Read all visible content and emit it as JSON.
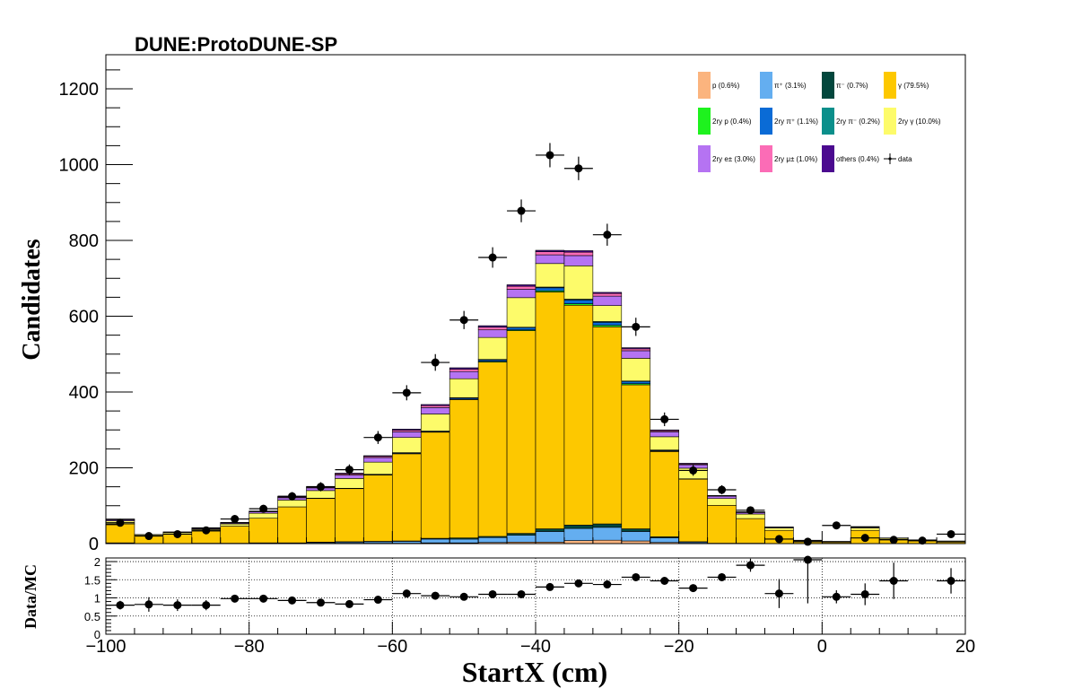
{
  "colors": {
    "p": "#fbb47e",
    "pi_plus": "#64aef0",
    "pi_minus": "#03473d",
    "gamma": "#fdc800",
    "ry_p": "#1ef21e",
    "ry_pi_plus": "#0a6bd6",
    "ry_pi_minus": "#0b8f8b",
    "ry_gamma": "#fdfb6a",
    "ry_e": "#b573f2",
    "ry_mu": "#fb6cb6",
    "others": "#4b0a8f",
    "data": "#000000"
  },
  "chart_data": [
    {
      "type": "bar",
      "stacked": true,
      "title": "DUNE:ProtoDUNE-SP",
      "xlabel": "StartX (cm)",
      "ylabel": "Candidates",
      "xlim": [
        -100,
        20
      ],
      "ylim": [
        0,
        1290
      ],
      "y_ticks": [
        0,
        200,
        400,
        600,
        800,
        1000,
        1200
      ],
      "y_tick_labels": [
        "0",
        "200",
        "400",
        "600",
        "800",
        "1000",
        "1200"
      ],
      "bin_edges": [
        -100,
        -96,
        -92,
        -88,
        -84,
        -80,
        -76,
        -72,
        -68,
        -64,
        -60,
        -56,
        -52,
        -48,
        -44,
        -40,
        -36,
        -32,
        -28,
        -24,
        -20,
        -16,
        -12,
        -8,
        -4,
        0,
        4,
        8,
        12,
        16,
        20
      ],
      "legend_position": "top-right",
      "series": [
        {
          "name": "p (0.6%)",
          "color_key": "p",
          "values": [
            0,
            0,
            0,
            0,
            0,
            0,
            0,
            1,
            1,
            1,
            1,
            2,
            2,
            3,
            4,
            4,
            8,
            9,
            7,
            3,
            1,
            0,
            0,
            0,
            0,
            0,
            0,
            0,
            0,
            0
          ]
        },
        {
          "name": "π⁺ (3.1%)",
          "color_key": "pi_plus",
          "values": [
            1,
            0,
            0,
            1,
            1,
            1,
            1,
            2,
            3,
            4,
            5,
            10,
            10,
            13,
            18,
            28,
            32,
            34,
            25,
            12,
            3,
            1,
            1,
            0,
            0,
            1,
            0,
            0,
            0,
            0
          ]
        },
        {
          "name": "π⁻ (0.7%)",
          "color_key": "pi_minus",
          "values": [
            1,
            0,
            0,
            0,
            0,
            1,
            1,
            1,
            1,
            1,
            1,
            2,
            3,
            3,
            5,
            7,
            9,
            9,
            7,
            3,
            1,
            0,
            0,
            0,
            0,
            0,
            0,
            0,
            0,
            0
          ]
        },
        {
          "name": "γ (79.5%)",
          "color_key": "gamma",
          "values": [
            50,
            20,
            25,
            32,
            45,
            65,
            95,
            115,
            140,
            175,
            230,
            280,
            365,
            460,
            535,
            625,
            580,
            520,
            380,
            225,
            165,
            100,
            65,
            35,
            6,
            3,
            35,
            11,
            7,
            4
          ]
        },
        {
          "name": "2ry p (0.4%)",
          "color_key": "ry_p",
          "values": [
            0,
            0,
            0,
            0,
            0,
            0,
            0,
            0,
            0,
            1,
            1,
            1,
            1,
            2,
            2,
            3,
            4,
            4,
            3,
            1,
            0,
            0,
            0,
            0,
            0,
            0,
            0,
            0,
            0,
            0
          ]
        },
        {
          "name": "2ry π⁺ (1.1%)",
          "color_key": "ry_pi_plus",
          "values": [
            0,
            0,
            0,
            0,
            0,
            0,
            0,
            1,
            1,
            1,
            2,
            2,
            3,
            4,
            6,
            8,
            10,
            8,
            6,
            2,
            1,
            0,
            0,
            0,
            0,
            0,
            0,
            0,
            0,
            0
          ]
        },
        {
          "name": "2ry π⁻ (0.2%)",
          "color_key": "ry_pi_minus",
          "values": [
            0,
            0,
            0,
            0,
            0,
            0,
            0,
            0,
            0,
            0,
            0,
            0,
            1,
            1,
            1,
            2,
            2,
            2,
            1,
            1,
            0,
            0,
            0,
            0,
            0,
            0,
            0,
            0,
            0,
            0
          ]
        },
        {
          "name": "2ry γ (10.0%)",
          "color_key": "ry_gamma",
          "values": [
            8,
            3,
            4,
            5,
            6,
            13,
            18,
            20,
            26,
            32,
            40,
            45,
            50,
            58,
            78,
            62,
            88,
            42,
            60,
            35,
            28,
            18,
            12,
            6,
            2,
            1,
            6,
            3,
            2,
            2
          ]
        },
        {
          "name": "2ry e± (3.0%)",
          "color_key": "ry_e",
          "values": [
            3,
            1,
            1,
            2,
            2,
            4,
            6,
            7,
            9,
            12,
            15,
            17,
            19,
            20,
            22,
            23,
            27,
            25,
            20,
            13,
            9,
            6,
            4,
            2,
            1,
            1,
            2,
            1,
            1,
            1
          ]
        },
        {
          "name": "2ry μ± (1.0%)",
          "color_key": "ry_mu",
          "values": [
            1,
            0,
            1,
            1,
            1,
            1,
            2,
            2,
            3,
            3,
            4,
            5,
            6,
            7,
            8,
            8,
            9,
            7,
            5,
            3,
            2,
            1,
            1,
            1,
            0,
            0,
            1,
            0,
            0,
            0
          ]
        },
        {
          "name": "others (0.4%)",
          "color_key": "others",
          "values": [
            1,
            0,
            0,
            1,
            1,
            1,
            2,
            2,
            2,
            2,
            3,
            3,
            4,
            4,
            4,
            4,
            4,
            3,
            3,
            2,
            2,
            1,
            1,
            0,
            0,
            0,
            1,
            0,
            0,
            0
          ]
        }
      ],
      "data_series": {
        "name": "data",
        "x": [
          -98,
          -94,
          -90,
          -86,
          -82,
          -78,
          -74,
          -70,
          -66,
          -62,
          -58,
          -54,
          -50,
          -46,
          -42,
          -38,
          -34,
          -30,
          -26,
          -22,
          -18,
          -14,
          -10,
          -6,
          -2,
          2,
          6,
          10,
          14,
          18
        ],
        "y": [
          55,
          20,
          25,
          35,
          65,
          92,
          125,
          150,
          195,
          280,
          398,
          478,
          590,
          755,
          878,
          1025,
          990,
          815,
          572,
          328,
          193,
          142,
          88,
          12,
          5,
          48,
          15,
          10,
          8,
          25
        ],
        "yerr": [
          7,
          4,
          5,
          6,
          8,
          10,
          11,
          12,
          14,
          17,
          20,
          22,
          24,
          27,
          30,
          32,
          31,
          29,
          24,
          18,
          14,
          12,
          9,
          4,
          2,
          7,
          4,
          3,
          3,
          5
        ]
      }
    },
    {
      "type": "scatter",
      "xlabel": "StartX (cm)",
      "ylabel": "Data/MC",
      "xlim": [
        -100,
        20
      ],
      "ylim": [
        0,
        2.1
      ],
      "x_ticks": [
        -100,
        -80,
        -60,
        -40,
        -20,
        0,
        20
      ],
      "x_tick_labels": [
        "−100",
        "−80",
        "−60",
        "−40",
        "−20",
        "0",
        "20"
      ],
      "y_ticks": [
        0,
        0.5,
        1,
        1.5,
        2
      ],
      "y_tick_labels": [
        "0",
        "0.5",
        "1",
        "1.5",
        "2"
      ],
      "grid": true,
      "x": [
        -98,
        -94,
        -90,
        -86,
        -82,
        -78,
        -74,
        -70,
        -66,
        -62,
        -58,
        -54,
        -50,
        -46,
        -42,
        -38,
        -34,
        -30,
        -26,
        -22,
        -18,
        -14,
        -10,
        -6,
        -2,
        2,
        6,
        10,
        14,
        18
      ],
      "y": [
        0.8,
        0.82,
        0.8,
        0.8,
        0.98,
        0.98,
        0.93,
        0.87,
        0.83,
        0.95,
        1.12,
        1.06,
        1.03,
        1.1,
        1.1,
        1.3,
        1.4,
        1.37,
        1.57,
        1.47,
        1.27,
        1.57,
        1.9,
        1.12,
        2.05,
        1.03,
        1.1,
        1.47,
        0,
        1.47
      ],
      "yerr": [
        0.12,
        0.2,
        0.16,
        0.14,
        0.08,
        0.07,
        0.06,
        0.06,
        0.05,
        0.05,
        0.05,
        0.05,
        0.04,
        0.04,
        0.04,
        0.04,
        0.04,
        0.04,
        0.06,
        0.07,
        0.09,
        0.11,
        0.18,
        0.4,
        1.2,
        0.18,
        0.3,
        0.5,
        0,
        0.35
      ]
    }
  ]
}
